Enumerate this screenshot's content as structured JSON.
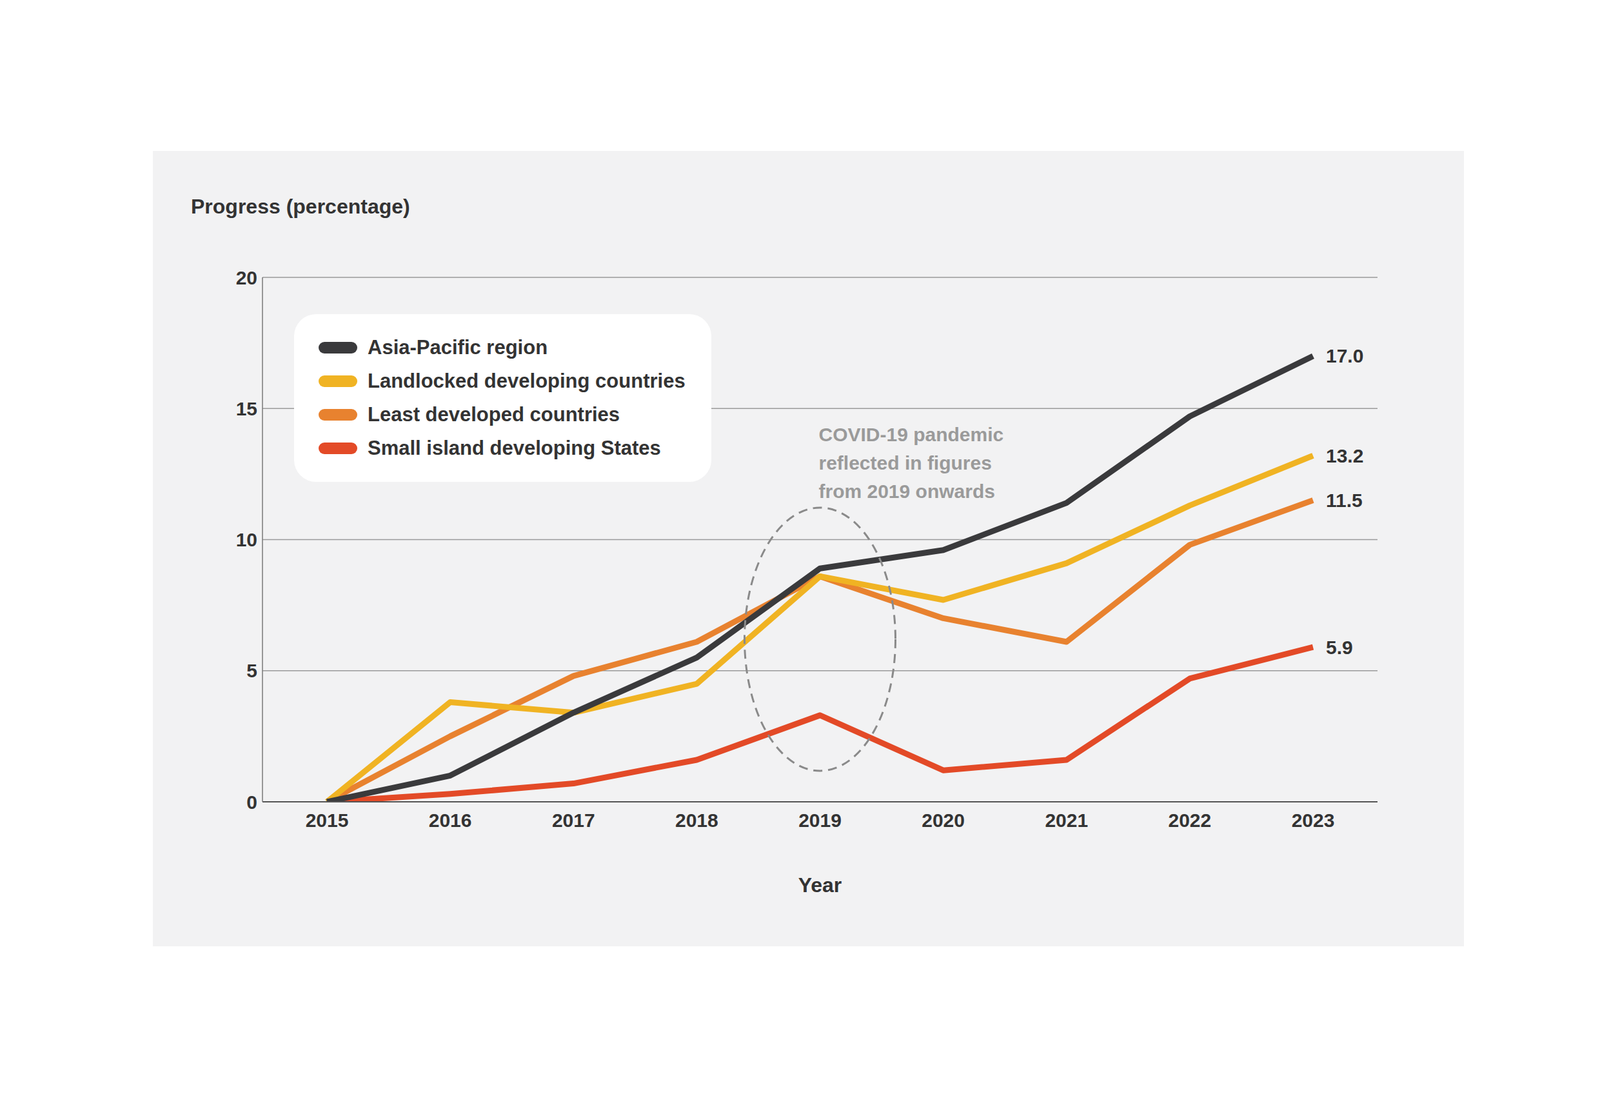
{
  "chart_data": {
    "type": "line",
    "y_label": "Progress (percentage)",
    "x_label": "Year",
    "categories": [
      "2015",
      "2016",
      "2017",
      "2018",
      "2019",
      "2020",
      "2021",
      "2022",
      "2023"
    ],
    "ylim": [
      0,
      20
    ],
    "yticks": [
      0,
      5,
      10,
      15,
      20
    ],
    "grid": true,
    "legend": "upper left",
    "annotation": {
      "text": "COVID-19 pandemic reflected in figures from 2019 onwards",
      "x": "2019"
    },
    "series": [
      {
        "name": "Asia-Pacific region",
        "color": "#3a3a3c",
        "values": [
          0,
          1.0,
          3.4,
          5.5,
          8.9,
          9.6,
          11.4,
          14.7,
          17.0
        ],
        "value_labels": [
          null,
          null,
          null,
          null,
          null,
          null,
          null,
          null,
          "17.0"
        ]
      },
      {
        "name": "Landlocked developing countries",
        "color": "#f0b323",
        "values": [
          0,
          3.8,
          3.4,
          4.5,
          8.6,
          7.7,
          9.1,
          11.3,
          13.2
        ],
        "value_labels": [
          null,
          null,
          null,
          null,
          null,
          null,
          null,
          null,
          "13.2"
        ]
      },
      {
        "name": "Least developed countries",
        "color": "#e8822f",
        "values": [
          0,
          2.5,
          4.8,
          6.1,
          8.6,
          7.0,
          6.1,
          9.8,
          11.5
        ],
        "value_labels": [
          null,
          null,
          null,
          null,
          null,
          null,
          null,
          null,
          "11.5"
        ]
      },
      {
        "name": "Small island developing States",
        "color": "#e34a27",
        "values": [
          0,
          0.3,
          0.7,
          1.6,
          3.3,
          1.2,
          1.6,
          4.7,
          5.9
        ],
        "value_labels": [
          null,
          null,
          null,
          null,
          null,
          null,
          null,
          null,
          "5.9"
        ]
      }
    ]
  }
}
